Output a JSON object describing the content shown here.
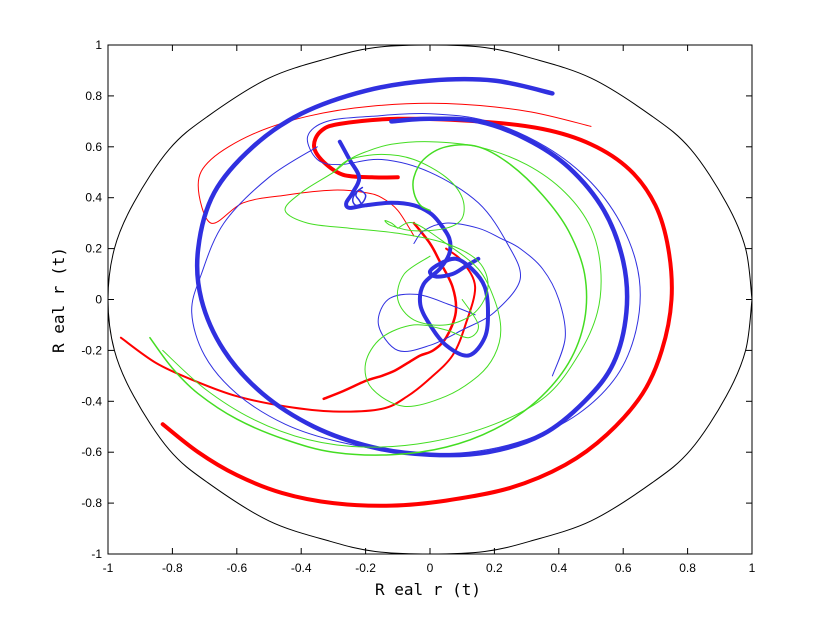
{
  "chart_data": {
    "type": "line",
    "title": "",
    "xlabel": "R eal r (t)",
    "ylabel": "R eal r (t)",
    "xlim": [
      -1,
      1
    ],
    "ylim": [
      -1,
      1
    ],
    "grid": false,
    "xticks": [
      "-1",
      "-0.8",
      "-0.6",
      "-0.4",
      "-0.2",
      "0",
      "0.2",
      "0.4",
      "0.6",
      "0.8",
      "1"
    ],
    "yticks": [
      "-1",
      "-0.8",
      "-0.6",
      "-0.4",
      "-0.2",
      "0",
      "0.2",
      "0.4",
      "0.6",
      "0.8",
      "1"
    ],
    "series": [
      {
        "color": "#000000",
        "width": 1,
        "x": [
          1,
          0.98,
          0.92,
          0.81,
          0.69,
          0.5,
          0.31,
          0.17,
          0,
          -0.17,
          -0.31,
          -0.5,
          -0.69,
          -0.81,
          -0.92,
          -0.98,
          -1,
          -0.98,
          -0.92,
          -0.81,
          -0.69,
          -0.5,
          -0.31,
          -0.17,
          0,
          0.17,
          0.31,
          0.5,
          0.69,
          0.81,
          0.92,
          0.98,
          1
        ],
        "y": [
          0,
          0.2,
          0.38,
          0.59,
          0.72,
          0.87,
          0.95,
          0.99,
          1,
          0.99,
          0.95,
          0.87,
          0.72,
          0.59,
          0.38,
          0.2,
          0,
          -0.2,
          -0.38,
          -0.59,
          -0.72,
          -0.87,
          -0.95,
          -0.99,
          -1,
          -0.99,
          -0.95,
          -0.87,
          -0.72,
          -0.59,
          -0.38,
          -0.2,
          0
        ]
      },
      {
        "color": "#ff0000",
        "width": 4,
        "x": [
          -0.1,
          -0.18,
          -0.27,
          -0.33,
          -0.36,
          -0.34,
          -0.28,
          -0.1,
          0.15,
          0.35,
          0.5,
          0.62,
          0.7,
          0.74,
          0.75,
          0.72,
          0.66,
          0.55,
          0.42,
          0.25,
          0.05,
          -0.12,
          -0.3,
          -0.46,
          -0.6,
          -0.72,
          -0.83
        ],
        "y": [
          0.48,
          0.48,
          0.49,
          0.54,
          0.6,
          0.66,
          0.69,
          0.71,
          0.7,
          0.67,
          0.61,
          0.51,
          0.37,
          0.2,
          0,
          -0.2,
          -0.37,
          -0.53,
          -0.65,
          -0.74,
          -0.79,
          -0.81,
          -0.8,
          -0.76,
          -0.69,
          -0.6,
          -0.49
        ]
      },
      {
        "color": "#ff0000",
        "width": 2.5,
        "x": [
          -0.33,
          -0.27,
          -0.2,
          -0.15,
          -0.11,
          -0.07,
          -0.03,
          0.01,
          0.05,
          0.08,
          0.07,
          0.03,
          0.0,
          -0.05
        ],
        "y": [
          -0.39,
          -0.36,
          -0.32,
          -0.3,
          -0.28,
          -0.25,
          -0.22,
          -0.2,
          -0.15,
          -0.05,
          0.05,
          0.15,
          0.22,
          0.3
        ]
      },
      {
        "color": "#ff0000",
        "width": 2,
        "x": [
          -0.96,
          -0.85,
          -0.73,
          -0.6,
          -0.45,
          -0.3,
          -0.15,
          -0.07,
          0.0,
          0.07,
          0.11,
          0.14,
          0.1,
          0.05
        ],
        "y": [
          -0.15,
          -0.25,
          -0.32,
          -0.38,
          -0.42,
          -0.44,
          -0.43,
          -0.38,
          -0.31,
          -0.22,
          -0.1,
          0.05,
          0.15,
          0.2
        ]
      },
      {
        "color": "#ff0000",
        "width": 1,
        "x": [
          -0.05,
          -0.1,
          -0.15,
          -0.2,
          -0.3,
          -0.45,
          -0.58,
          -0.68,
          -0.72,
          -0.68,
          -0.55,
          -0.38,
          -0.18,
          0.05,
          0.3,
          0.5
        ],
        "y": [
          0.25,
          0.35,
          0.4,
          0.42,
          0.43,
          0.41,
          0.38,
          0.3,
          0.45,
          0.55,
          0.65,
          0.72,
          0.76,
          0.77,
          0.74,
          0.68
        ]
      },
      {
        "color": "#3030e0",
        "width": 4.5,
        "x": [
          0.38,
          0.2,
          0.0,
          -0.2,
          -0.4,
          -0.55,
          -0.67,
          -0.72,
          -0.71,
          -0.64,
          -0.52,
          -0.36,
          -0.18,
          0.0,
          0.18,
          0.35,
          0.48,
          0.57,
          0.61,
          0.6,
          0.54,
          0.43,
          0.3,
          0.15,
          0.0,
          -0.12
        ],
        "y": [
          0.81,
          0.86,
          0.86,
          0.82,
          0.73,
          0.6,
          0.42,
          0.2,
          0.0,
          -0.2,
          -0.37,
          -0.5,
          -0.58,
          -0.61,
          -0.6,
          -0.53,
          -0.4,
          -0.25,
          -0.05,
          0.15,
          0.35,
          0.52,
          0.63,
          0.7,
          0.71,
          0.7
        ]
      },
      {
        "color": "#3030e0",
        "width": 4,
        "x": [
          -0.28,
          -0.25,
          -0.22,
          -0.24,
          -0.26,
          -0.25,
          -0.2,
          -0.12,
          -0.05,
          0.0,
          0.03,
          0.06,
          0.06,
          0.03,
          -0.02,
          -0.03,
          0.0,
          0.05,
          0.12,
          0.17,
          0.18,
          0.17,
          0.13,
          0.08,
          0.03,
          0.0,
          0.02,
          0.07,
          0.11,
          0.15
        ],
        "y": [
          0.62,
          0.55,
          0.48,
          0.42,
          0.38,
          0.36,
          0.37,
          0.38,
          0.37,
          0.34,
          0.3,
          0.24,
          0.18,
          0.12,
          0.06,
          -0.02,
          -0.1,
          -0.18,
          -0.22,
          -0.15,
          -0.05,
          0.05,
          0.12,
          0.16,
          0.14,
          0.11,
          0.09,
          0.1,
          0.13,
          0.16
        ]
      },
      {
        "color": "#3030e0",
        "width": 1,
        "x": [
          -0.35,
          -0.5,
          -0.64,
          -0.71,
          -0.74,
          -0.7,
          -0.6,
          -0.45,
          -0.28,
          -0.08,
          0.12,
          0.3,
          0.46,
          0.58,
          0.64,
          0.65,
          0.6,
          0.5,
          0.36,
          0.18,
          0.0,
          -0.18,
          -0.32,
          -0.38,
          -0.35,
          -0.28,
          -0.15,
          0.0,
          0.15,
          0.24,
          0.28,
          0.2,
          0.1,
          0.0,
          -0.1,
          -0.16,
          -0.13,
          -0.04,
          0.06,
          0.14
        ],
        "y": [
          0.6,
          0.48,
          0.3,
          0.1,
          -0.05,
          -0.22,
          -0.37,
          -0.49,
          -0.56,
          -0.6,
          -0.6,
          -0.55,
          -0.45,
          -0.3,
          -0.12,
          0.08,
          0.28,
          0.46,
          0.6,
          0.7,
          0.73,
          0.72,
          0.7,
          0.64,
          0.55,
          0.53,
          0.55,
          0.5,
          0.38,
          0.22,
          0.08,
          -0.05,
          -0.12,
          -0.18,
          -0.2,
          -0.1,
          0.0,
          0.02,
          -0.02,
          -0.06
        ]
      },
      {
        "color": "#3030e0",
        "width": 1,
        "x": [
          -0.05,
          -0.02,
          0.05,
          0.15,
          0.22,
          0.28,
          0.35,
          0.4,
          0.42,
          0.38
        ],
        "y": [
          0.22,
          0.27,
          0.3,
          0.28,
          0.24,
          0.2,
          0.12,
          0.0,
          -0.15,
          -0.3
        ]
      },
      {
        "color": "#3030e0",
        "width": 1.5,
        "x": [
          -0.21,
          -0.22,
          -0.23,
          -0.22,
          -0.2,
          -0.21,
          -0.23,
          -0.24,
          -0.23,
          -0.21
        ],
        "y": [
          0.37,
          0.39,
          0.41,
          0.43,
          0.41,
          0.38,
          0.37,
          0.39,
          0.42,
          0.44
        ]
      },
      {
        "color": "#44dd22",
        "width": 1.5,
        "x": [
          -0.87,
          -0.8,
          -0.72,
          -0.6,
          -0.45,
          -0.3,
          -0.12,
          0.05,
          0.2,
          0.33,
          0.43,
          0.48,
          0.48,
          0.43,
          0.35,
          0.25,
          0.15,
          0.05,
          -0.02,
          -0.05,
          -0.05,
          -0.03,
          0.0
        ],
        "y": [
          -0.15,
          -0.27,
          -0.37,
          -0.47,
          -0.55,
          -0.6,
          -0.61,
          -0.58,
          -0.51,
          -0.4,
          -0.25,
          -0.08,
          0.1,
          0.27,
          0.41,
          0.53,
          0.6,
          0.6,
          0.55,
          0.48,
          0.42,
          0.37,
          0.35
        ]
      },
      {
        "color": "#44dd22",
        "width": 1,
        "x": [
          -0.83,
          -0.7,
          -0.55,
          -0.38,
          -0.2,
          0.0,
          0.2,
          0.36,
          0.46,
          0.52,
          0.53,
          0.5,
          0.42,
          0.3,
          0.15,
          0.0,
          -0.12,
          -0.2,
          -0.25,
          -0.3,
          -0.4,
          -0.45,
          -0.38,
          -0.25,
          -0.1,
          0.05,
          0.15,
          0.18,
          0.14,
          0.05,
          -0.05,
          -0.1,
          -0.08,
          0.0
        ],
        "y": [
          -0.2,
          -0.35,
          -0.47,
          -0.55,
          -0.58,
          -0.56,
          -0.49,
          -0.38,
          -0.22,
          -0.05,
          0.12,
          0.28,
          0.42,
          0.53,
          0.6,
          0.62,
          0.61,
          0.58,
          0.55,
          0.5,
          0.42,
          0.35,
          0.3,
          0.28,
          0.26,
          0.22,
          0.15,
          0.05,
          -0.05,
          -0.1,
          -0.08,
          0.0,
          0.1,
          0.17
        ]
      },
      {
        "color": "#44dd22",
        "width": 1,
        "x": [
          -0.1,
          -0.05,
          0.05,
          0.15,
          0.2,
          0.22,
          0.2,
          0.15,
          0.05,
          -0.08,
          -0.18,
          -0.2,
          -0.15,
          -0.05,
          0.05,
          0.12,
          0.15,
          0.1
        ],
        "y": [
          0.28,
          0.3,
          0.22,
          0.12,
          0.0,
          -0.12,
          -0.22,
          -0.3,
          -0.38,
          -0.42,
          -0.35,
          -0.25,
          -0.15,
          -0.1,
          -0.12,
          -0.15,
          -0.1,
          0.0
        ]
      },
      {
        "color": "#44dd22",
        "width": 1,
        "x": [
          -0.3,
          -0.25,
          -0.15,
          -0.05,
          0.05,
          0.1,
          0.1,
          0.05,
          -0.05,
          -0.12,
          -0.14,
          -0.12,
          -0.1
        ],
        "y": [
          0.5,
          0.55,
          0.57,
          0.55,
          0.48,
          0.4,
          0.32,
          0.28,
          0.27,
          0.29,
          0.31,
          0.3,
          0.28
        ]
      }
    ]
  }
}
